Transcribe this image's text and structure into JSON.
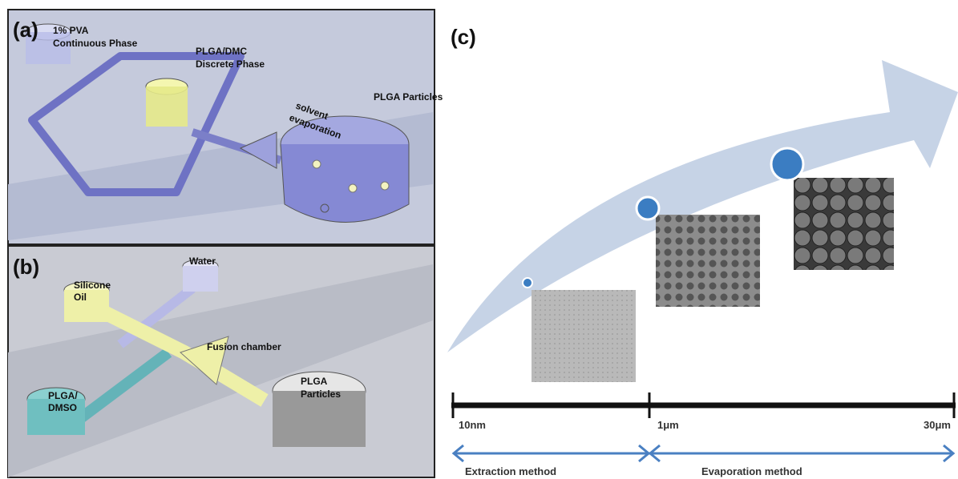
{
  "panel_a": {
    "label": "(a)",
    "pva": "1% PVA",
    "continuous": "Continuous Phase",
    "plga_dmc": "PLGA/DMC",
    "discrete": "Discrete Phase",
    "solvent": "solvent",
    "evaporation": "evaporation",
    "particles": "PLGA Particles"
  },
  "panel_b": {
    "label": "(b)",
    "water": "Water",
    "silicone": "Silicone",
    "oil": "Oil",
    "fusion": "Fusion chamber",
    "plga_slash": "PLGA/",
    "dmso": "DMSO",
    "plga": "PLGA",
    "particles": "Particles"
  },
  "panel_c": {
    "label": "(c)",
    "scale": [
      "10nm",
      "1μm",
      "30μm"
    ],
    "methods": [
      "Extraction method",
      "Evaporation method"
    ]
  }
}
